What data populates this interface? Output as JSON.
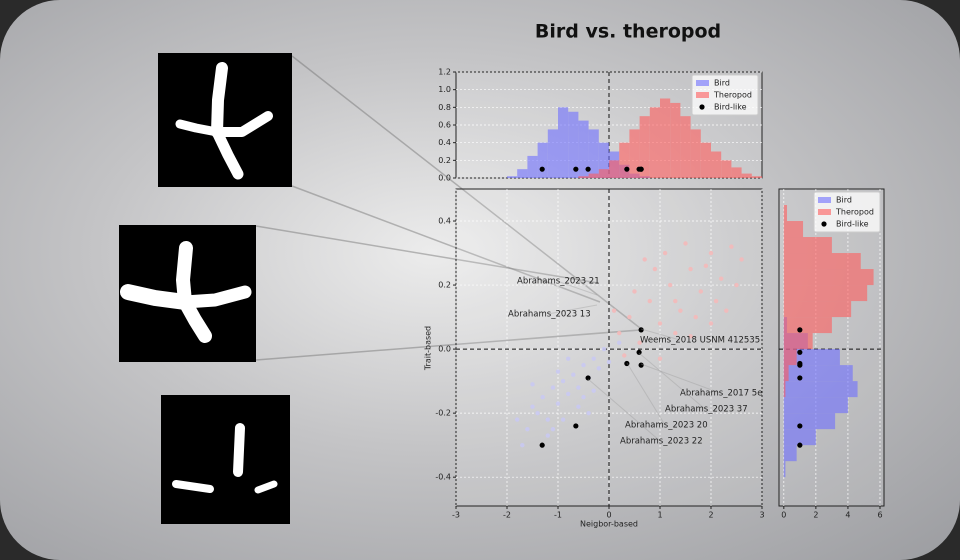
{
  "chart_data": [
    {
      "type": "scatter",
      "title": "Bird vs. theropod",
      "x_label": "Neigbor-based",
      "y_label": "Trait-based",
      "xlim": [
        -3,
        3
      ],
      "ylim": [
        -0.49,
        0.5
      ],
      "xticks": [
        -3,
        -2,
        -1,
        {
          "value": 0,
          "label": "0"
        },
        1,
        2,
        3
      ],
      "yticks": [
        -0.4,
        -0.2,
        {
          "value": 0,
          "label": "0.0"
        },
        0.2,
        0.4
      ],
      "grid": true,
      "series": [
        {
          "name": "Bird",
          "color": "#c9c9f2",
          "x": [
            -1.8,
            -1.6,
            -1.5,
            -1.4,
            -1.3,
            -1.2,
            -1.1,
            -1.0,
            -0.9,
            -0.8,
            -0.7,
            -0.6,
            -0.5,
            -0.4,
            -0.3,
            -0.2,
            -0.1,
            0.0,
            0.2,
            -1.7,
            -1.2,
            -0.9,
            -0.6,
            -0.3,
            -1.5,
            -1.0,
            -0.5,
            -0.8,
            -1.1,
            -0.4
          ],
          "values": [
            -0.22,
            -0.25,
            -0.18,
            -0.2,
            -0.15,
            -0.22,
            -0.12,
            -0.17,
            -0.1,
            -0.14,
            -0.08,
            -0.12,
            -0.05,
            -0.09,
            -0.03,
            -0.06,
            0.0,
            -0.04,
            0.02,
            -0.3,
            -0.27,
            -0.22,
            -0.18,
            -0.13,
            -0.11,
            -0.07,
            -0.15,
            -0.03,
            -0.25,
            -0.2
          ]
        },
        {
          "name": "Theropod",
          "color": "#f4b9b9",
          "x": [
            0.2,
            0.4,
            0.6,
            0.8,
            1.0,
            1.2,
            1.4,
            1.6,
            1.8,
            2.0,
            2.2,
            2.4,
            2.6,
            0.5,
            0.9,
            1.3,
            1.7,
            2.1,
            2.5,
            0.3,
            0.7,
            1.1,
            1.5,
            1.9,
            2.3,
            0.1,
            1.0,
            1.6,
            2.0,
            1.3
          ],
          "values": [
            0.05,
            0.1,
            0.02,
            0.15,
            0.08,
            0.2,
            0.12,
            0.25,
            0.18,
            0.3,
            0.22,
            0.32,
            0.28,
            0.18,
            0.25,
            0.05,
            0.1,
            0.15,
            0.2,
            -0.02,
            0.28,
            0.3,
            0.33,
            0.26,
            0.12,
            0.12,
            -0.03,
            0.04,
            0.08,
            0.15
          ]
        },
        {
          "name": "Bird-like",
          "color": "#000000",
          "x": [
            -1.31,
            -0.65,
            -0.41,
            0.35,
            0.63,
            0.59,
            0.63
          ],
          "values": [
            -0.3,
            -0.24,
            -0.09,
            -0.045,
            0.06,
            -0.01,
            -0.05
          ]
        }
      ],
      "annotations": [
        "Abrahams_2023 21",
        "Abrahams_2023 13",
        "Weems_2018 USNM 412535",
        "Abrahams_2017 5e",
        "Abrahams_2023 37",
        "Abrahams_2023 20",
        "Abrahams_2023 22"
      ]
    },
    {
      "type": "histogram",
      "xlim": [
        -3,
        3
      ],
      "ylim": [
        0,
        1.2
      ],
      "yticks": [
        {
          "value": 0,
          "label": "0.0"
        },
        0.2,
        0.4,
        0.6,
        0.8,
        {
          "value": 1,
          "label": "1.0"
        },
        1.2
      ],
      "grid": true,
      "legend": "upper right",
      "bins": [
        -2.2,
        -2.0,
        -1.8,
        -1.6,
        -1.4,
        -1.2,
        -1.0,
        -0.8,
        -0.6,
        -0.4,
        -0.2,
        0.0,
        0.2,
        0.4,
        0.6,
        0.8,
        1.0,
        1.2,
        1.4,
        1.6,
        1.8,
        2.0,
        2.2,
        2.4,
        2.6,
        2.8,
        3.0
      ],
      "series": [
        {
          "name": "Bird",
          "color": "#6e6eff",
          "values": [
            0,
            0.02,
            0.1,
            0.25,
            0.4,
            0.55,
            0.8,
            0.75,
            0.65,
            0.55,
            0.4,
            0.3,
            0.15,
            0.05,
            0.02,
            0,
            0,
            0,
            0,
            0,
            0,
            0,
            0,
            0,
            0,
            0
          ]
        },
        {
          "name": "Theropod",
          "color": "#ff5c5c",
          "values": [
            0,
            0,
            0,
            0,
            0,
            0,
            0,
            0,
            0.02,
            0.05,
            0.1,
            0.2,
            0.4,
            0.55,
            0.7,
            0.8,
            0.9,
            0.85,
            0.7,
            0.55,
            0.4,
            0.3,
            0.2,
            0.12,
            0.05,
            0.02
          ]
        },
        {
          "name": "Bird-like",
          "color": "#000000",
          "x": [
            -1.31,
            -0.65,
            -0.41,
            0.35,
            0.63,
            0.59,
            0.63
          ],
          "values": [
            0.1,
            0.1,
            0.1,
            0.1,
            0.1,
            0.1,
            0.1
          ]
        }
      ]
    },
    {
      "type": "histogram",
      "orientation": "horizontal",
      "xlim": [
        -0.3,
        6.25
      ],
      "ylim": [
        -0.49,
        0.5
      ],
      "xticks": [
        0,
        2,
        4,
        6
      ],
      "grid": true,
      "legend": "upper right",
      "bins": [
        -0.45,
        -0.4,
        -0.35,
        -0.3,
        -0.25,
        -0.2,
        -0.15,
        -0.1,
        -0.05,
        0.0,
        0.05,
        0.1,
        0.15,
        0.2,
        0.25,
        0.3,
        0.35,
        0.4,
        0.45
      ],
      "series": [
        {
          "name": "Bird",
          "color": "#6e6eff",
          "values": [
            0,
            0.1,
            0.8,
            2.0,
            3.2,
            4.0,
            4.6,
            4.3,
            3.5,
            1.5,
            0.2,
            0,
            0,
            0,
            0,
            0,
            0,
            0
          ]
        },
        {
          "name": "Theropod",
          "color": "#ff5c5c",
          "values": [
            0,
            0,
            0,
            0,
            0,
            0,
            0.1,
            0.3,
            0.8,
            1.8,
            3.0,
            4.2,
            5.2,
            5.6,
            4.8,
            3.0,
            1.2,
            0.2
          ]
        },
        {
          "name": "Bird-like",
          "color": "#000000",
          "y": [
            -0.3,
            -0.24,
            -0.09,
            -0.045,
            0.06,
            -0.01,
            -0.05
          ],
          "values": [
            1,
            1,
            1,
            1,
            1,
            1,
            1
          ]
        }
      ]
    }
  ]
}
